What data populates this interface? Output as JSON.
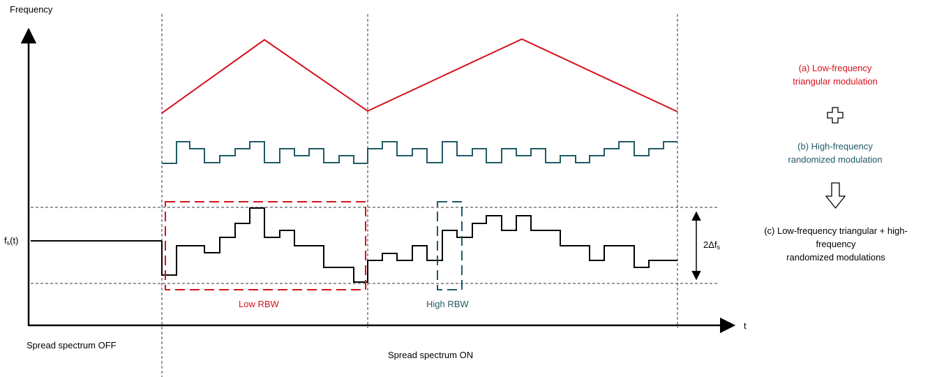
{
  "axes": {
    "y_label": "Frequency",
    "x_label": "t",
    "fs_label_main": "f",
    "fs_label_sub": "s",
    "fs_label_suffix": "(t)",
    "delta_label_main": "2Δf",
    "delta_label_sub": "s"
  },
  "regions": {
    "off_label": "Spread spectrum OFF",
    "on_label": "Spread spectrum ON"
  },
  "boxes": {
    "low_rbw_label": "Low RBW",
    "high_rbw_label": "High RBW"
  },
  "legend": {
    "a_line1": "(a)  Low-frequency",
    "a_line2": "triangular modulation",
    "b_line1": "(b)  High-frequency",
    "b_line2": "randomized modulation",
    "c_line1": "(c)  Low-frequency triangular + high-",
    "c_line2": "frequency",
    "c_line3": "randomized modulations"
  },
  "icons": {
    "plus": "plus-outline-icon",
    "arrow": "down-arrow-outline-icon"
  },
  "colors": {
    "triangular": "#d6111b",
    "randomized": "#1f5a66",
    "combined": "#000000"
  }
}
